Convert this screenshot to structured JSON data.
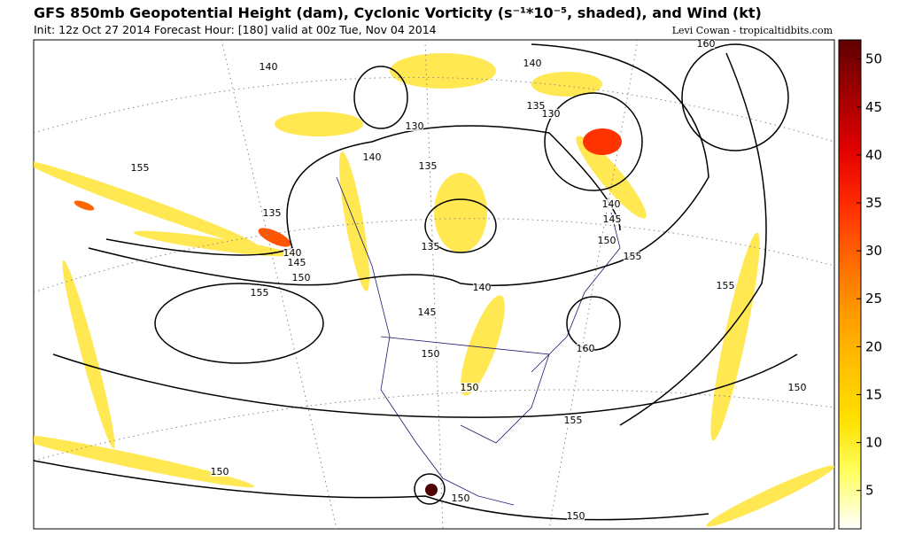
{
  "header": {
    "title": "GFS 850mb Geopotential Height (dam), Cyclonic Vorticity (s⁻¹*10⁻⁵, shaded), and Wind (kt)",
    "subtitle": "Init: 12z Oct 27 2014 Forecast Hour: [180] valid at 00z Tue, Nov 04 2014",
    "credit": "Levi Cowan - tropicaltidbits.com"
  },
  "colorbar": {
    "range": [
      1,
      52
    ],
    "ticks": [
      5,
      10,
      15,
      20,
      25,
      30,
      35,
      40,
      45,
      50
    ],
    "colors": [
      "#ffffff",
      "#ffff66",
      "#ffe000",
      "#ffc000",
      "#ff9900",
      "#ff6600",
      "#ff2a00",
      "#e00000",
      "#a00000",
      "#600000"
    ]
  },
  "contour_labels": [
    140,
    160,
    140,
    135,
    130,
    130,
    155,
    140,
    135,
    135,
    140,
    145,
    150,
    155,
    135,
    140,
    145,
    150,
    150,
    140,
    145,
    150,
    155,
    155,
    160,
    155,
    150,
    150,
    150,
    150
  ]
}
